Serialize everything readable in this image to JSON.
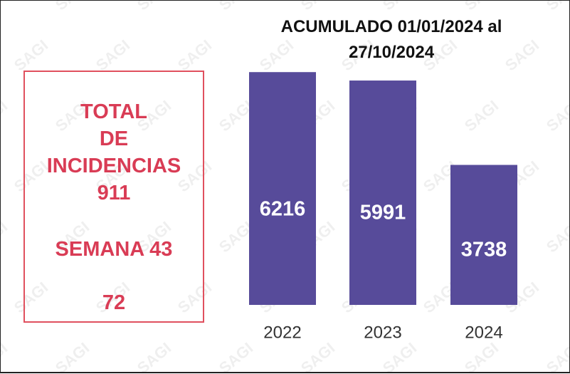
{
  "watermark_text": "SAGI",
  "summary_box": {
    "line1": "TOTAL",
    "line2": "DE",
    "line3": "INCIDENCIAS",
    "total_value": "911",
    "week_label": "SEMANA 43",
    "week_value": "72"
  },
  "colors": {
    "bar": "#574b9a",
    "summary_text": "#d93c55",
    "summary_border": "#e0505e"
  },
  "chart_data": {
    "type": "bar",
    "title_line1": "ACUMULADO 01/01/2024 al",
    "title_line2": "27/10/2024",
    "categories": [
      "2022",
      "2023",
      "2024"
    ],
    "values": [
      6216,
      5991,
      3738
    ],
    "data_labels": [
      "6216",
      "5991",
      "3738"
    ],
    "ylim": [
      0,
      7000
    ],
    "grid": false
  }
}
